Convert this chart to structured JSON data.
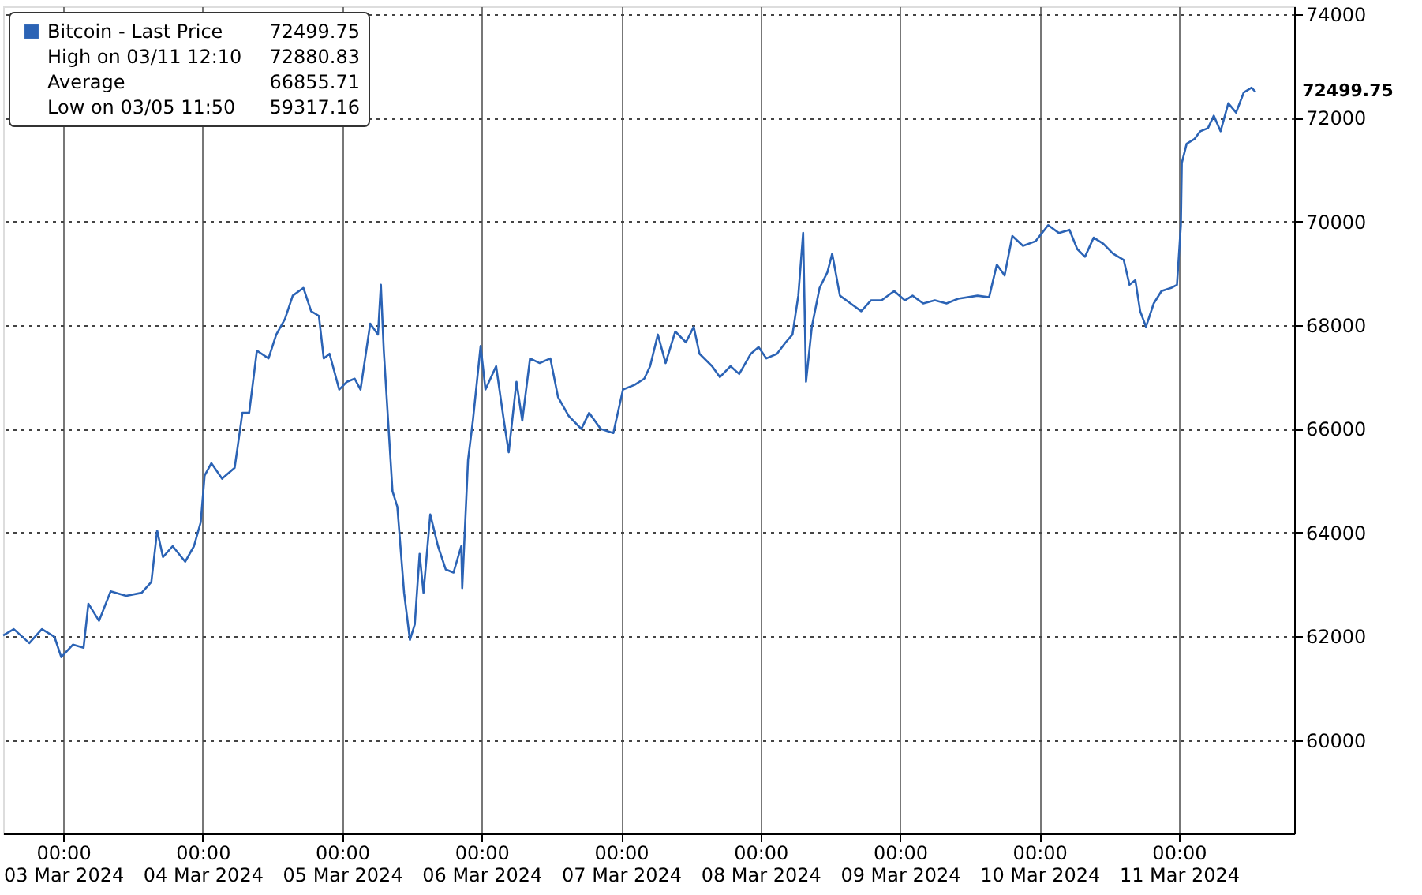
{
  "chart_data": {
    "type": "line",
    "series": [
      {
        "name": "Bitcoin - Last Price",
        "color": "#2b63b5",
        "x": [
          "2024-03-02T13:40",
          "2024-03-02T15:30",
          "2024-03-02T18:10",
          "2024-03-02T20:20",
          "2024-03-02T22:30",
          "2024-03-02T23:40",
          "2024-03-03T01:40",
          "2024-03-03T03:30",
          "2024-03-03T04:20",
          "2024-03-03T06:10",
          "2024-03-03T08:10",
          "2024-03-03T10:50",
          "2024-03-03T13:30",
          "2024-03-03T15:10",
          "2024-03-03T16:10",
          "2024-03-03T17:10",
          "2024-03-03T18:50",
          "2024-03-03T21:00",
          "2024-03-03T22:30",
          "2024-03-03T23:40",
          "2024-03-04T00:20",
          "2024-03-04T01:30",
          "2024-03-04T03:20",
          "2024-03-04T05:30",
          "2024-03-04T06:00",
          "2024-03-04T06:50",
          "2024-03-04T08:00",
          "2024-03-04T09:20",
          "2024-03-04T11:20",
          "2024-03-04T12:40",
          "2024-03-04T14:10",
          "2024-03-04T15:30",
          "2024-03-04T17:20",
          "2024-03-04T18:40",
          "2024-03-04T20:00",
          "2024-03-04T20:50",
          "2024-03-04T21:50",
          "2024-03-04T23:30",
          "2024-03-05T00:50",
          "2024-03-05T02:10",
          "2024-03-05T03:10",
          "2024-03-05T04:50",
          "2024-03-05T06:10",
          "2024-03-05T06:40",
          "2024-03-05T07:10",
          "2024-03-05T08:00",
          "2024-03-05T08:40",
          "2024-03-05T09:30",
          "2024-03-05T10:40",
          "2024-03-05T11:40",
          "2024-03-05T12:30",
          "2024-03-05T13:20",
          "2024-03-05T14:00",
          "2024-03-05T15:10",
          "2024-03-05T16:30",
          "2024-03-05T17:50",
          "2024-03-05T19:10",
          "2024-03-05T20:30",
          "2024-03-05T20:40",
          "2024-03-05T21:40",
          "2024-03-05T22:30",
          "2024-03-05T23:50",
          "2024-03-06T00:40",
          "2024-03-06T02:30",
          "2024-03-06T03:50",
          "2024-03-06T04:40",
          "2024-03-06T06:00",
          "2024-03-06T07:00",
          "2024-03-06T08:20",
          "2024-03-06T10:00",
          "2024-03-06T11:50",
          "2024-03-06T13:10",
          "2024-03-06T15:00",
          "2024-03-06T17:10",
          "2024-03-06T18:30",
          "2024-03-06T20:30",
          "2024-03-06T22:40",
          "2024-03-07T00:20",
          "2024-03-07T02:20",
          "2024-03-07T04:00",
          "2024-03-07T05:00",
          "2024-03-07T06:20",
          "2024-03-07T07:40",
          "2024-03-07T09:20",
          "2024-03-07T11:10",
          "2024-03-07T12:30",
          "2024-03-07T13:30",
          "2024-03-07T15:40",
          "2024-03-07T17:00",
          "2024-03-07T18:50",
          "2024-03-07T20:20",
          "2024-03-07T22:20",
          "2024-03-07T23:40",
          "2024-03-08T01:00",
          "2024-03-08T02:50",
          "2024-03-08T04:20",
          "2024-03-08T05:30",
          "2024-03-08T06:30",
          "2024-03-08T07:20",
          "2024-03-08T07:50",
          "2024-03-08T08:50",
          "2024-03-08T10:10",
          "2024-03-08T11:30",
          "2024-03-08T12:20",
          "2024-03-08T13:40",
          "2024-03-08T15:30",
          "2024-03-08T17:20",
          "2024-03-08T19:00",
          "2024-03-08T20:50",
          "2024-03-08T23:00",
          "2024-03-09T00:50",
          "2024-03-09T02:10",
          "2024-03-09T04:00",
          "2024-03-09T06:00",
          "2024-03-09T08:00",
          "2024-03-09T10:00",
          "2024-03-09T13:20",
          "2024-03-09T15:20",
          "2024-03-09T16:40",
          "2024-03-09T18:00",
          "2024-03-09T19:20",
          "2024-03-09T21:10",
          "2024-03-09T23:20",
          "2024-03-10T01:30",
          "2024-03-10T03:20",
          "2024-03-10T05:10",
          "2024-03-10T06:30",
          "2024-03-10T07:50",
          "2024-03-10T09:20",
          "2024-03-10T11:00",
          "2024-03-10T12:40",
          "2024-03-10T14:30",
          "2024-03-10T15:30",
          "2024-03-10T16:30",
          "2024-03-10T17:20",
          "2024-03-10T18:20",
          "2024-03-10T19:40",
          "2024-03-10T21:00",
          "2024-03-10T22:40",
          "2024-03-10T23:40",
          "2024-03-11T00:20",
          "2024-03-11T00:30",
          "2024-03-11T01:20",
          "2024-03-11T02:40",
          "2024-03-11T03:40",
          "2024-03-11T05:00",
          "2024-03-11T06:00",
          "2024-03-11T07:10",
          "2024-03-11T08:30",
          "2024-03-11T09:50",
          "2024-03-11T11:10",
          "2024-03-11T12:30",
          "2024-03-11T13:10"
        ],
        "values": [
          62020,
          62140,
          61870,
          62140,
          61990,
          61600,
          61840,
          61780,
          62630,
          62300,
          62870,
          62780,
          62840,
          63050,
          64040,
          63530,
          63740,
          63440,
          63740,
          64200,
          65100,
          65340,
          65040,
          65250,
          65640,
          66310,
          66310,
          67510,
          67360,
          67820,
          68120,
          68570,
          68720,
          68270,
          68180,
          67360,
          67450,
          66760,
          66910,
          66970,
          66760,
          68030,
          67820,
          68780,
          67510,
          66000,
          64800,
          64500,
          62840,
          61930,
          62230,
          63590,
          62840,
          64350,
          63740,
          63290,
          63230,
          63740,
          62930,
          65400,
          66160,
          67600,
          66760,
          67210,
          66160,
          65550,
          66910,
          66160,
          67360,
          67270,
          67360,
          66610,
          66250,
          66000,
          66310,
          66000,
          65920,
          66760,
          66850,
          66970,
          67210,
          67820,
          67270,
          67880,
          67670,
          67970,
          67450,
          67210,
          67000,
          67210,
          67060,
          67450,
          67580,
          67360,
          67450,
          67670,
          67820,
          68570,
          69780,
          66910,
          67970,
          68720,
          69020,
          69380,
          68570,
          68420,
          68270,
          68480,
          68480,
          68660,
          68480,
          68570,
          68420,
          68480,
          68420,
          68510,
          68570,
          68540,
          69170,
          68960,
          69720,
          69530,
          69620,
          69930,
          69780,
          69840,
          69470,
          69320,
          69690,
          69570,
          69380,
          69260,
          68780,
          68870,
          68270,
          67970,
          68420,
          68660,
          68720,
          68780,
          69930,
          71130,
          71500,
          71590,
          71740,
          71800,
          72040,
          71740,
          72280,
          72100,
          72490,
          72580,
          72499.75
        ]
      }
    ],
    "xlim": [
      "2024-03-02T13:40",
      "2024-03-11T19:50"
    ],
    "xticks": [
      {
        "value": "2024-03-03T00:00",
        "label": "00:00\n03 Mar 2024"
      },
      {
        "value": "2024-03-04T00:00",
        "label": "00:00\n04 Mar 2024"
      },
      {
        "value": "2024-03-05T00:00",
        "label": "00:00\n05 Mar 2024"
      },
      {
        "value": "2024-03-06T00:00",
        "label": "00:00\n06 Mar 2024"
      },
      {
        "value": "2024-03-07T00:00",
        "label": "00:00\n07 Mar 2024"
      },
      {
        "value": "2024-03-08T00:00",
        "label": "00:00\n08 Mar 2024"
      },
      {
        "value": "2024-03-09T00:00",
        "label": "00:00\n09 Mar 2024"
      },
      {
        "value": "2024-03-10T00:00",
        "label": "00:00\n10 Mar 2024"
      },
      {
        "value": "2024-03-11T00:00",
        "label": "00:00\n11 Mar 2024"
      }
    ],
    "ylim": [
      58200,
      74150
    ],
    "yticks": [
      60000,
      62000,
      64000,
      66000,
      68000,
      70000,
      72000,
      74000
    ],
    "grid": true,
    "legend": "top left",
    "annotations": [
      "72499.75",
      "High on 03/11 12:10 72880.83",
      "Average 66855.71",
      "Low on 03/05 11:50 59317.16"
    ]
  }
}
